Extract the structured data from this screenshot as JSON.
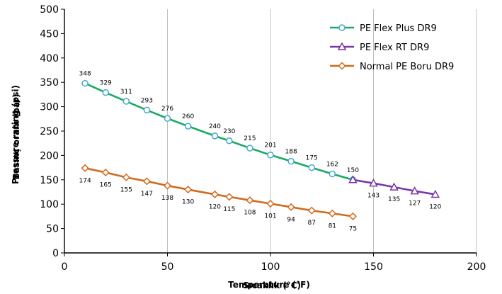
{
  "chart_data": {
    "type": "line",
    "title": "",
    "xlabel": "Temperature (°F)",
    "xlabel_overlay": "Sıcaklık (°C)",
    "ylabel": "Pressure rating (psi)",
    "ylabel_overlay": "Basınç oranı (bar)",
    "xlim": [
      0,
      200
    ],
    "ylim": [
      0,
      500
    ],
    "xticks": [
      "0",
      "50",
      "100",
      "150",
      "200"
    ],
    "yticks": [
      "0",
      "50",
      "100",
      "150",
      "200",
      "250",
      "300",
      "350",
      "400",
      "450",
      "500"
    ],
    "grid": "vertical",
    "legend": "top-right",
    "series": [
      {
        "name": "PE Flex Plus DR9",
        "color": "#1aaa62",
        "marker": "circle",
        "marker_color": "#46a9c9",
        "x": [
          10,
          20,
          30,
          40,
          50,
          60,
          73,
          80,
          90,
          100,
          110,
          120,
          130,
          140
        ],
        "y": [
          348,
          329,
          311,
          293,
          276,
          260,
          240,
          230,
          215,
          201,
          188,
          175,
          162,
          150
        ],
        "labels": [
          "348",
          "329",
          "311",
          "293",
          "276",
          "260",
          "240",
          "230",
          "215",
          "201",
          "188",
          "175",
          "162",
          "150"
        ]
      },
      {
        "name": "PE Flex RT DR9",
        "color": "#7a35a6",
        "marker": "triangle",
        "marker_color": "#7a35a6",
        "x": [
          140,
          150,
          160,
          170,
          180
        ],
        "y": [
          150,
          143,
          135,
          127,
          120
        ],
        "labels": [
          "",
          "143",
          "135",
          "127",
          "120"
        ]
      },
      {
        "name": "Normal PE Boru DR9",
        "color": "#d2691e",
        "marker": "diamond",
        "marker_color": "#d2691e",
        "x": [
          10,
          20,
          30,
          40,
          50,
          60,
          73,
          80,
          90,
          100,
          110,
          120,
          130,
          140
        ],
        "y": [
          174,
          165,
          155,
          147,
          138,
          130,
          120,
          115,
          108,
          101,
          94,
          87,
          81,
          75
        ],
        "labels": [
          "174",
          "165",
          "155",
          "147",
          "138",
          "130",
          "120",
          "115",
          "108",
          "101",
          "94",
          "87",
          "81",
          "75"
        ]
      }
    ]
  }
}
